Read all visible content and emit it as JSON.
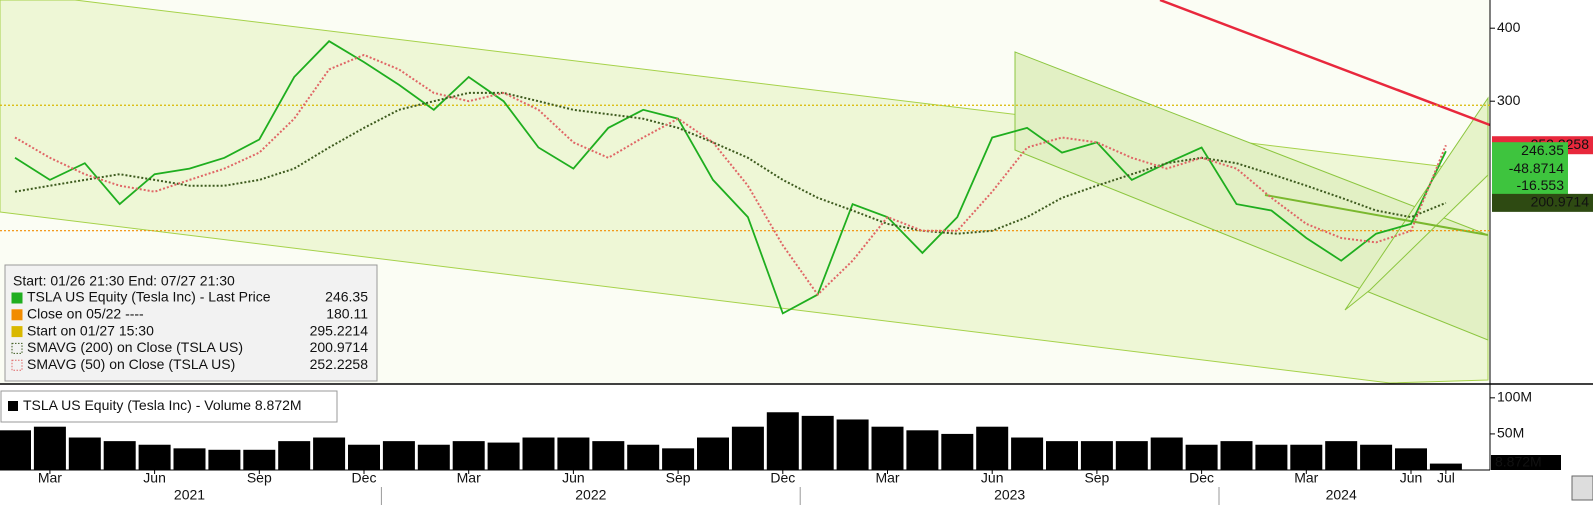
{
  "legend_header": "Start: 01/26 21:30 End: 07/27 21:30",
  "chart_data": [
    {
      "type": "line",
      "scale": "log",
      "categories": [
        null,
        "Mar",
        null,
        null,
        "Jun",
        null,
        null,
        "Sep",
        null,
        null,
        "Dec",
        null,
        null,
        "Mar",
        null,
        null,
        "Jun",
        null,
        null,
        "Sep",
        null,
        null,
        "Dec",
        null,
        null,
        "Mar",
        null,
        null,
        "Jun",
        null,
        null,
        "Sep",
        null,
        null,
        "Dec",
        null,
        null,
        "Mar",
        null,
        null,
        "Jun",
        "Jul"
      ],
      "years": [
        "2021",
        "2022",
        "2023",
        "2024"
      ],
      "series": [
        {
          "name": "TSLA US Equity (Tesla Inc) - Last Price",
          "color": "#1fae1f",
          "values": [
            240,
            220,
            235,
            200,
            225,
            230,
            240,
            258,
            330,
            380,
            350,
            320,
            290,
            330,
            300,
            250,
            230,
            270,
            290,
            280,
            220,
            190,
            130,
            140,
            200,
            190,
            165,
            190,
            260,
            270,
            245,
            255,
            220,
            235,
            250,
            200,
            195,
            175,
            160,
            178,
            185,
            246.35
          ]
        },
        {
          "name": "SMAVG (200)  on Close (TSLA US)",
          "color": "#3d5a1e",
          "values": [
            210,
            215,
            220,
            225,
            220,
            215,
            215,
            220,
            230,
            250,
            270,
            290,
            300,
            310,
            310,
            300,
            290,
            285,
            280,
            270,
            255,
            240,
            220,
            205,
            195,
            185,
            180,
            178,
            180,
            190,
            205,
            215,
            225,
            235,
            240,
            235,
            225,
            215,
            205,
            195,
            190,
            200.9714
          ]
        },
        {
          "name": "SMAVG (50)  on Close (TSLA US)",
          "color": "#e06666",
          "values": [
            260,
            240,
            225,
            215,
            210,
            220,
            230,
            245,
            280,
            340,
            360,
            340,
            310,
            300,
            310,
            290,
            255,
            240,
            260,
            280,
            255,
            215,
            170,
            140,
            160,
            190,
            180,
            180,
            210,
            250,
            260,
            255,
            240,
            230,
            240,
            230,
            205,
            185,
            175,
            172,
            180,
            252.2258
          ]
        }
      ],
      "reference_lines": [
        {
          "name": "Close on 05/22 ----",
          "value": 180.11,
          "color": "#f28c00"
        },
        {
          "name": "Start on 01/27 15:30",
          "value": 295.2214,
          "color": "#d9b800"
        }
      ],
      "annotations": [
        "-48.8714",
        "-16.553"
      ],
      "ylim": [
        100,
        447
      ],
      "yticks": [
        300,
        400
      ]
    },
    {
      "type": "bar",
      "title": "TSLA US Equity (Tesla Inc) - Volume",
      "color": "#000000",
      "values": [
        55,
        60,
        45,
        40,
        35,
        30,
        28,
        28,
        40,
        45,
        35,
        40,
        35,
        40,
        38,
        45,
        45,
        40,
        35,
        30,
        45,
        60,
        80,
        75,
        70,
        60,
        55,
        50,
        60,
        45,
        40,
        40,
        40,
        45,
        35,
        40,
        35,
        35,
        40,
        35,
        30,
        8.872
      ],
      "value_labels": [
        null,
        null,
        null,
        null,
        null,
        null,
        null,
        null,
        null,
        null,
        null,
        null,
        null,
        null,
        null,
        null,
        null,
        null,
        null,
        null,
        null,
        null,
        null,
        null,
        null,
        null,
        null,
        null,
        null,
        null,
        null,
        null,
        null,
        null,
        null,
        null,
        null,
        null,
        null,
        null,
        null,
        "8.872M"
      ],
      "ylim": [
        0,
        115
      ],
      "yticks": [
        {
          "value": 100,
          "label": "100M"
        },
        {
          "value": 50,
          "label": "50M"
        }
      ]
    }
  ]
}
